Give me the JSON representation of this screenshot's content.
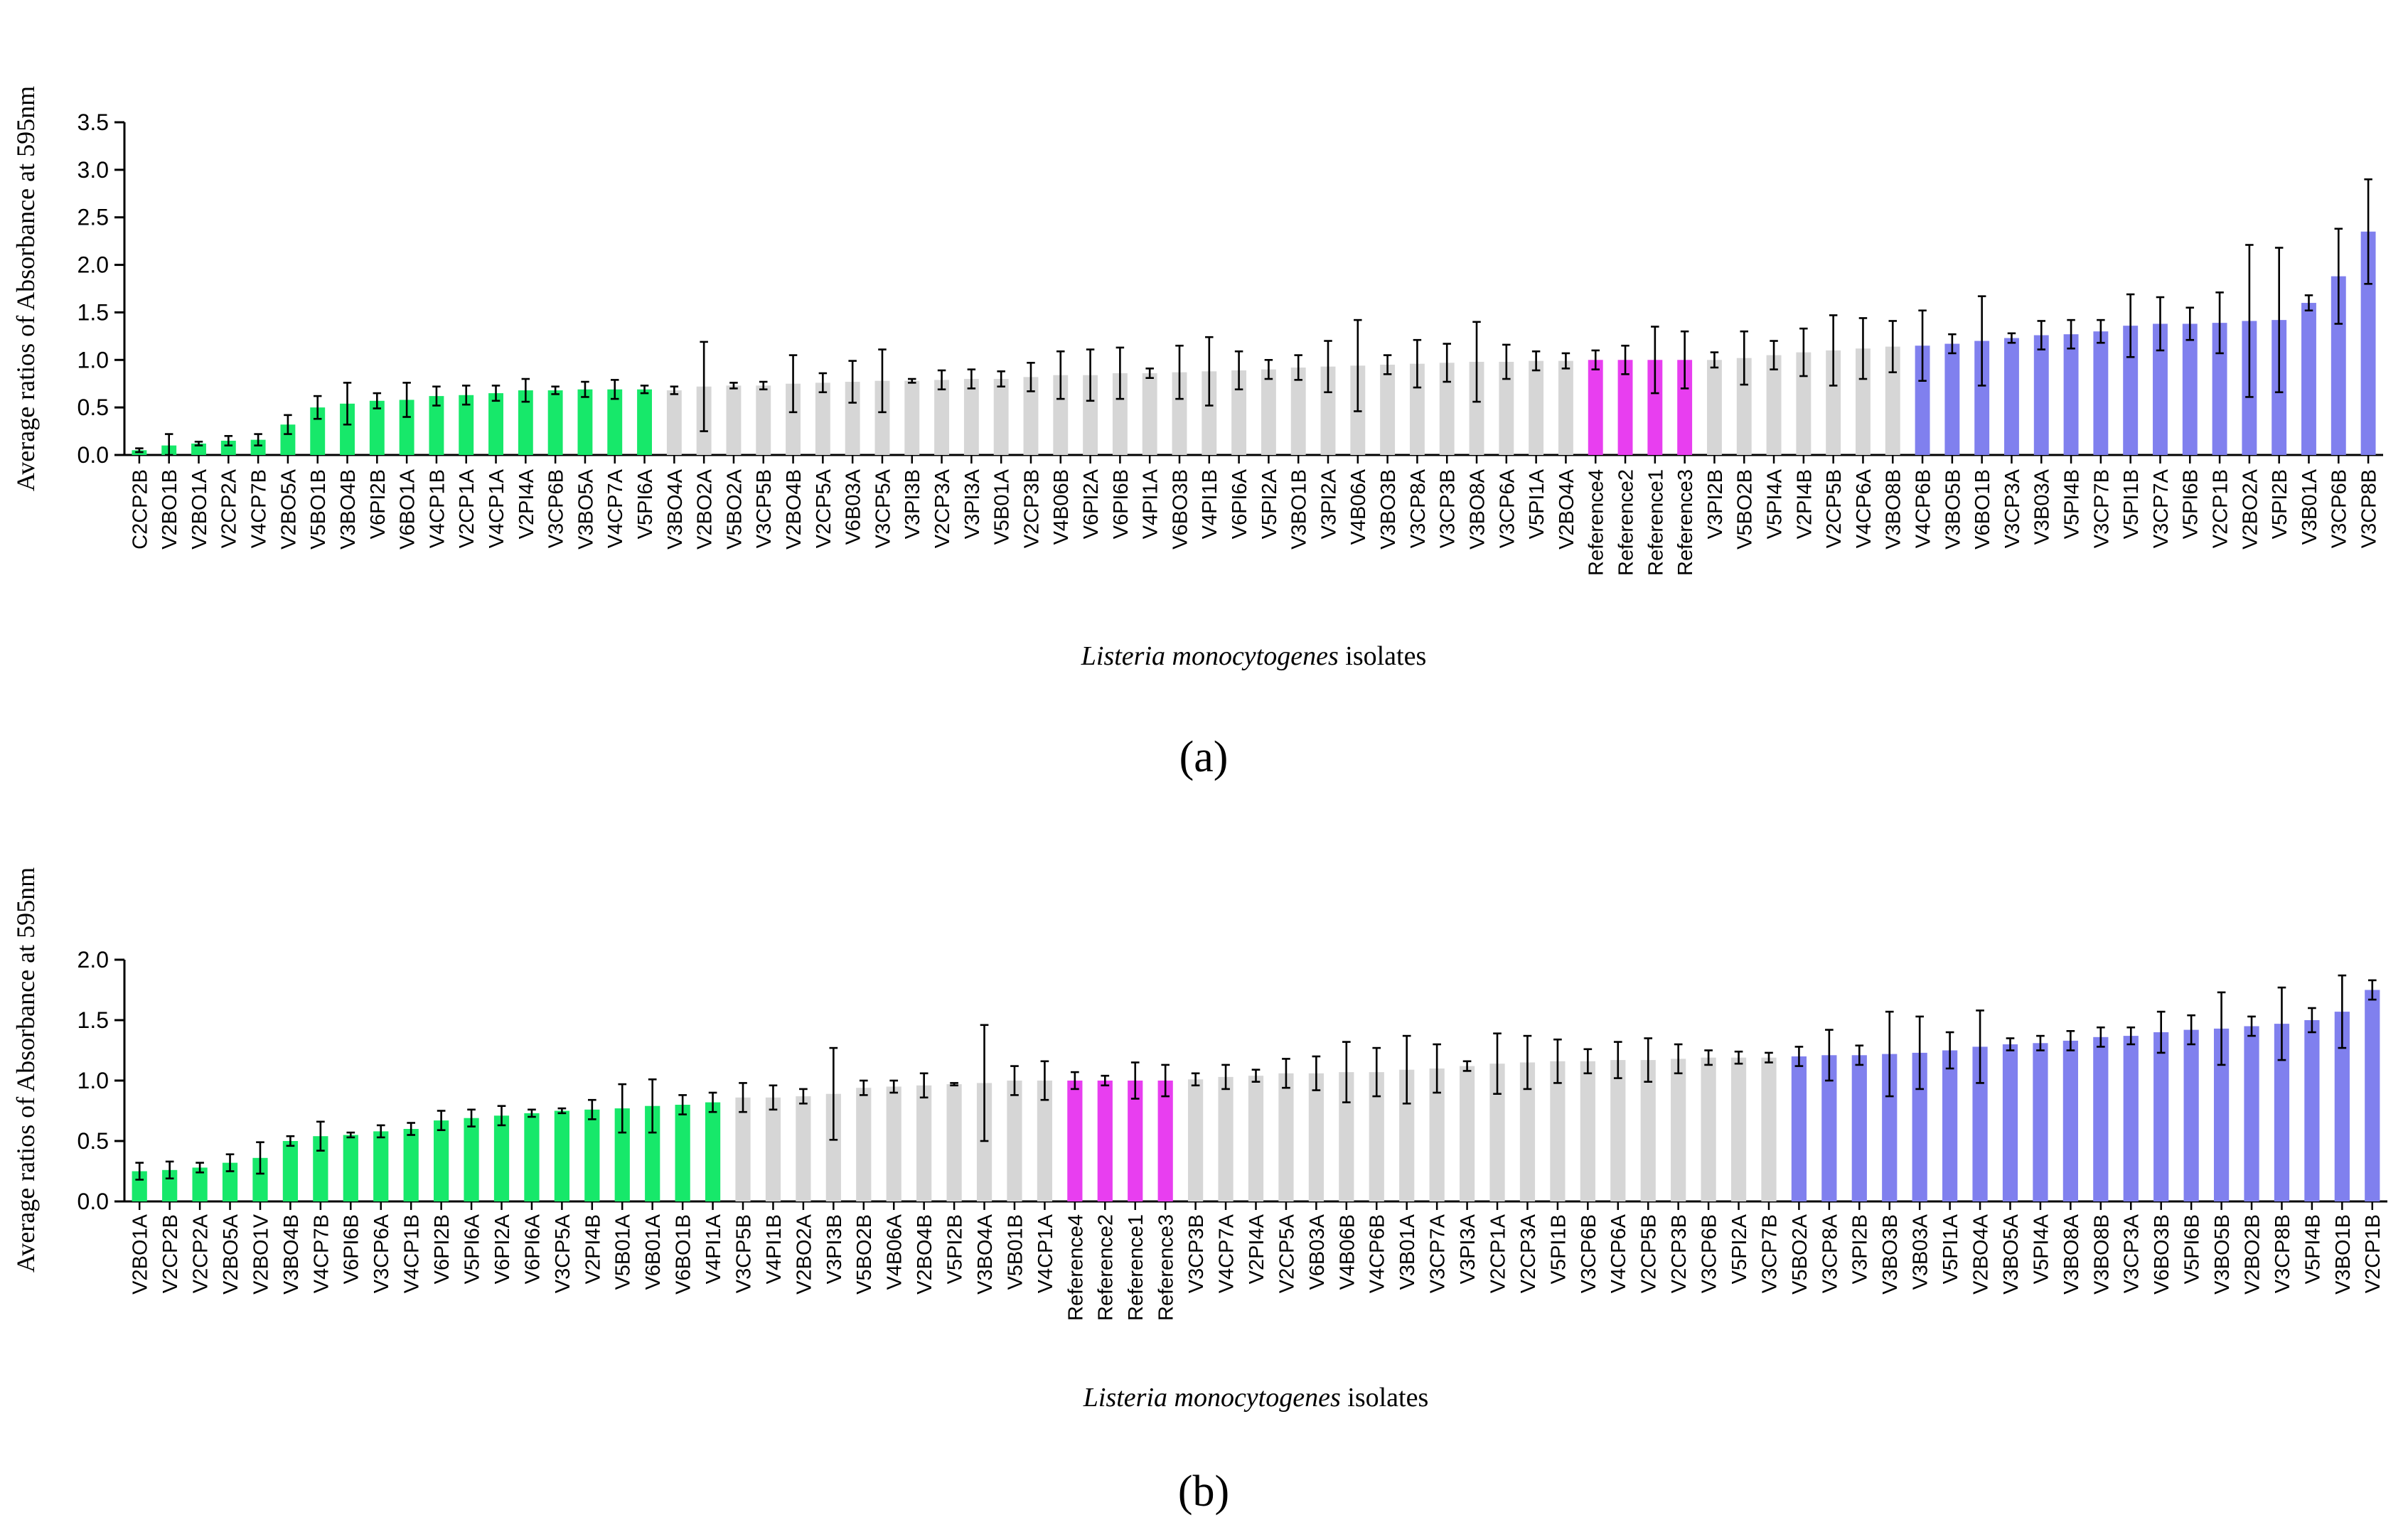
{
  "figure": {
    "panel_labels": [
      "(a)",
      "(b)"
    ],
    "colors": {
      "low": "#17e86a",
      "mid": "#d6d6d6",
      "reference": "#e83ef0",
      "high": "#8080ee",
      "axis": "#000000"
    }
  },
  "chart_data": [
    {
      "type": "bar",
      "panel": "a",
      "title": "",
      "ylabel": "Average ratios of Absorbance at 595nm",
      "xlabel_italic": "Listeria monocytogenes",
      "xlabel_rest": " isolates",
      "ylim": [
        0,
        3.5
      ],
      "yticks": [
        "0.0",
        "0.5",
        "1.0",
        "1.5",
        "2.0",
        "2.5",
        "3.0",
        "3.5"
      ],
      "categories": [
        "C2CP2B",
        "V2BO1B",
        "V2BO1A",
        "V2CP2A",
        "V4CP7B",
        "V2BO5A",
        "V5BO1B",
        "V3BO4B",
        "V6PI2B",
        "V6BO1A",
        "V4CP1B",
        "V2CP1A",
        "V4CP1A",
        "V2PI4A",
        "V3CP6B",
        "V3BO5A",
        "V4CP7A",
        "V5PI6A",
        "V3BO4A",
        "V2BO2A",
        "V5BO2A",
        "V3CP5B",
        "V2BO4B",
        "V2CP5A",
        "V6B03A",
        "V3CP5A",
        "V3PI3B",
        "V2CP3A",
        "V3PI3A",
        "V5B01A",
        "V2CP3B",
        "V4B06B",
        "V6PI2A",
        "V6PI6B",
        "V4PI1A",
        "V6BO3B",
        "V4PI1B",
        "V6PI6A",
        "V5PI2A",
        "V3BO1B",
        "V3PI2A",
        "V4B06A",
        "V3BO3B",
        "V3CP8A",
        "V3CP3B",
        "V3BO8A",
        "V3CP6A",
        "V5PI1A",
        "V2BO4A",
        "Reference4",
        "Reference2",
        "Reference1",
        "Reference3",
        "V3PI2B",
        "V5BO2B",
        "V5PI4A",
        "V2PI4B",
        "V2CP5B",
        "V4CP6A",
        "V3BO8B",
        "V4CP6B",
        "V3BO5B",
        "V6BO1B",
        "V3CP3A",
        "V3B03A",
        "V5PI4B",
        "V3CP7B",
        "V5PI1B",
        "V3CP7A",
        "V5PI6B",
        "V2CP1B",
        "V2BO2A",
        "V5PI2B",
        "V3B01A",
        "V3CP6B",
        "V3CP8B"
      ],
      "values": [
        0.05,
        0.1,
        0.12,
        0.15,
        0.16,
        0.32,
        0.5,
        0.54,
        0.57,
        0.58,
        0.62,
        0.63,
        0.65,
        0.68,
        0.68,
        0.69,
        0.69,
        0.69,
        0.68,
        0.72,
        0.73,
        0.73,
        0.75,
        0.76,
        0.77,
        0.78,
        0.78,
        0.79,
        0.8,
        0.8,
        0.82,
        0.84,
        0.84,
        0.86,
        0.86,
        0.87,
        0.88,
        0.89,
        0.9,
        0.92,
        0.93,
        0.94,
        0.95,
        0.96,
        0.97,
        0.98,
        0.98,
        0.99,
        0.99,
        1.0,
        1.0,
        1.0,
        1.0,
        1.0,
        1.02,
        1.05,
        1.08,
        1.1,
        1.12,
        1.14,
        1.15,
        1.17,
        1.2,
        1.23,
        1.26,
        1.27,
        1.3,
        1.36,
        1.38,
        1.38,
        1.39,
        1.41,
        1.42,
        1.6,
        1.88,
        2.35
      ],
      "errors": [
        0.02,
        0.12,
        0.02,
        0.05,
        0.06,
        0.1,
        0.12,
        0.22,
        0.08,
        0.18,
        0.1,
        0.1,
        0.08,
        0.12,
        0.04,
        0.08,
        0.1,
        0.04,
        0.04,
        0.47,
        0.03,
        0.04,
        0.3,
        0.1,
        0.22,
        0.33,
        0.02,
        0.1,
        0.1,
        0.08,
        0.15,
        0.25,
        0.27,
        0.27,
        0.05,
        0.28,
        0.36,
        0.2,
        0.1,
        0.13,
        0.27,
        0.48,
        0.1,
        0.25,
        0.2,
        0.42,
        0.18,
        0.1,
        0.08,
        0.1,
        0.15,
        0.35,
        0.3,
        0.08,
        0.28,
        0.15,
        0.25,
        0.37,
        0.32,
        0.27,
        0.37,
        0.1,
        0.47,
        0.05,
        0.15,
        0.15,
        0.12,
        0.33,
        0.28,
        0.17,
        0.32,
        0.8,
        0.76,
        0.08,
        0.5,
        0.55
      ],
      "groups": [
        "low",
        "low",
        "low",
        "low",
        "low",
        "low",
        "low",
        "low",
        "low",
        "low",
        "low",
        "low",
        "low",
        "low",
        "low",
        "low",
        "low",
        "low",
        "mid",
        "mid",
        "mid",
        "mid",
        "mid",
        "mid",
        "mid",
        "mid",
        "mid",
        "mid",
        "mid",
        "mid",
        "mid",
        "mid",
        "mid",
        "mid",
        "mid",
        "mid",
        "mid",
        "mid",
        "mid",
        "mid",
        "mid",
        "mid",
        "mid",
        "mid",
        "mid",
        "mid",
        "mid",
        "mid",
        "mid",
        "reference",
        "reference",
        "reference",
        "reference",
        "mid",
        "mid",
        "mid",
        "mid",
        "mid",
        "mid",
        "mid",
        "high",
        "high",
        "high",
        "high",
        "high",
        "high",
        "high",
        "high",
        "high",
        "high",
        "high",
        "high",
        "high",
        "high",
        "high",
        "high"
      ]
    },
    {
      "type": "bar",
      "panel": "b",
      "title": "",
      "ylabel": "Average ratios of Absorbance at 595nm",
      "xlabel_italic": "Listeria monocytogenes",
      "xlabel_rest": " isolates",
      "ylim": [
        0,
        2.0
      ],
      "yticks": [
        "0.0",
        "0.5",
        "1.0",
        "1.5",
        "2.0"
      ],
      "categories": [
        "V2BO1A",
        "V2CP2B",
        "V2CP2A",
        "V2BO5A",
        "V2BO1V",
        "V3BO4B",
        "V4CP7B",
        "V6PI6B",
        "V3CP6A",
        "V4CP1B",
        "V6PI2B",
        "V5PI6A",
        "V6PI2A",
        "V6PI6A",
        "V3CP5A",
        "V2PI4B",
        "V5B01A",
        "V6B01A",
        "V6BO1B",
        "V4PI1A",
        "V3CP5B",
        "V4PI1B",
        "V2BO2A",
        "V3PI3B",
        "V5BO2B",
        "V4B06A",
        "V2BO4B",
        "V5PI2B",
        "V3BO4A",
        "V5B01B",
        "V4CP1A",
        "Reference4",
        "Reference2",
        "Reference1",
        "Reference3",
        "V3CP3B",
        "V4CP7A",
        "V2PI4A",
        "V2CP5A",
        "V6B03A",
        "V4B06B",
        "V4CP6B",
        "V3B01A",
        "V3CP7A",
        "V3PI3A",
        "V2CP1A",
        "V2CP3A",
        "V5PI1B",
        "V3CP6B",
        "V4CP6A",
        "V2CP5B",
        "V2CP3B",
        "V3CP6B",
        "V5PI2A",
        "V3CP7B",
        "V5BO2A",
        "V3CP8A",
        "V3PI2B",
        "V3BO3B",
        "V3B03A",
        "V5PI1A",
        "V2BO4A",
        "V3BO5A",
        "V5PI4A",
        "V3BO8A",
        "V3BO8B",
        "V3CP3A",
        "V6BO3B",
        "V5PI6B",
        "V3BO5B",
        "V2BO2B",
        "V3CP8B",
        "V5PI4B",
        "V3BO1B",
        "V2CP1B"
      ],
      "values": [
        0.25,
        0.26,
        0.28,
        0.32,
        0.36,
        0.5,
        0.54,
        0.55,
        0.58,
        0.6,
        0.67,
        0.69,
        0.71,
        0.73,
        0.75,
        0.76,
        0.77,
        0.79,
        0.8,
        0.82,
        0.86,
        0.86,
        0.87,
        0.89,
        0.94,
        0.95,
        0.96,
        0.97,
        0.98,
        1.0,
        1.0,
        1.0,
        1.0,
        1.0,
        1.0,
        1.01,
        1.03,
        1.04,
        1.06,
        1.06,
        1.07,
        1.07,
        1.09,
        1.1,
        1.12,
        1.14,
        1.15,
        1.16,
        1.16,
        1.17,
        1.17,
        1.18,
        1.19,
        1.19,
        1.19,
        1.2,
        1.21,
        1.21,
        1.22,
        1.23,
        1.25,
        1.28,
        1.3,
        1.31,
        1.33,
        1.36,
        1.37,
        1.4,
        1.42,
        1.43,
        1.45,
        1.47,
        1.5,
        1.57,
        1.75
      ],
      "errors": [
        0.07,
        0.07,
        0.04,
        0.07,
        0.13,
        0.04,
        0.12,
        0.02,
        0.05,
        0.05,
        0.08,
        0.07,
        0.08,
        0.03,
        0.02,
        0.08,
        0.2,
        0.22,
        0.08,
        0.08,
        0.12,
        0.1,
        0.06,
        0.38,
        0.06,
        0.05,
        0.1,
        0.01,
        0.48,
        0.12,
        0.16,
        0.07,
        0.04,
        0.15,
        0.13,
        0.05,
        0.1,
        0.05,
        0.12,
        0.14,
        0.25,
        0.2,
        0.28,
        0.2,
        0.04,
        0.25,
        0.22,
        0.18,
        0.1,
        0.15,
        0.18,
        0.12,
        0.06,
        0.05,
        0.04,
        0.08,
        0.21,
        0.08,
        0.35,
        0.3,
        0.15,
        0.3,
        0.05,
        0.06,
        0.08,
        0.08,
        0.07,
        0.17,
        0.12,
        0.3,
        0.08,
        0.3,
        0.1,
        0.3,
        0.08
      ],
      "groups": [
        "low",
        "low",
        "low",
        "low",
        "low",
        "low",
        "low",
        "low",
        "low",
        "low",
        "low",
        "low",
        "low",
        "low",
        "low",
        "low",
        "low",
        "low",
        "low",
        "low",
        "mid",
        "mid",
        "mid",
        "mid",
        "mid",
        "mid",
        "mid",
        "mid",
        "mid",
        "mid",
        "mid",
        "reference",
        "reference",
        "reference",
        "reference",
        "mid",
        "mid",
        "mid",
        "mid",
        "mid",
        "mid",
        "mid",
        "mid",
        "mid",
        "mid",
        "mid",
        "mid",
        "mid",
        "mid",
        "mid",
        "mid",
        "mid",
        "mid",
        "mid",
        "mid",
        "high",
        "high",
        "high",
        "high",
        "high",
        "high",
        "high",
        "high",
        "high",
        "high",
        "high",
        "high",
        "high",
        "high",
        "high",
        "high",
        "high",
        "high",
        "high",
        "high"
      ]
    }
  ]
}
